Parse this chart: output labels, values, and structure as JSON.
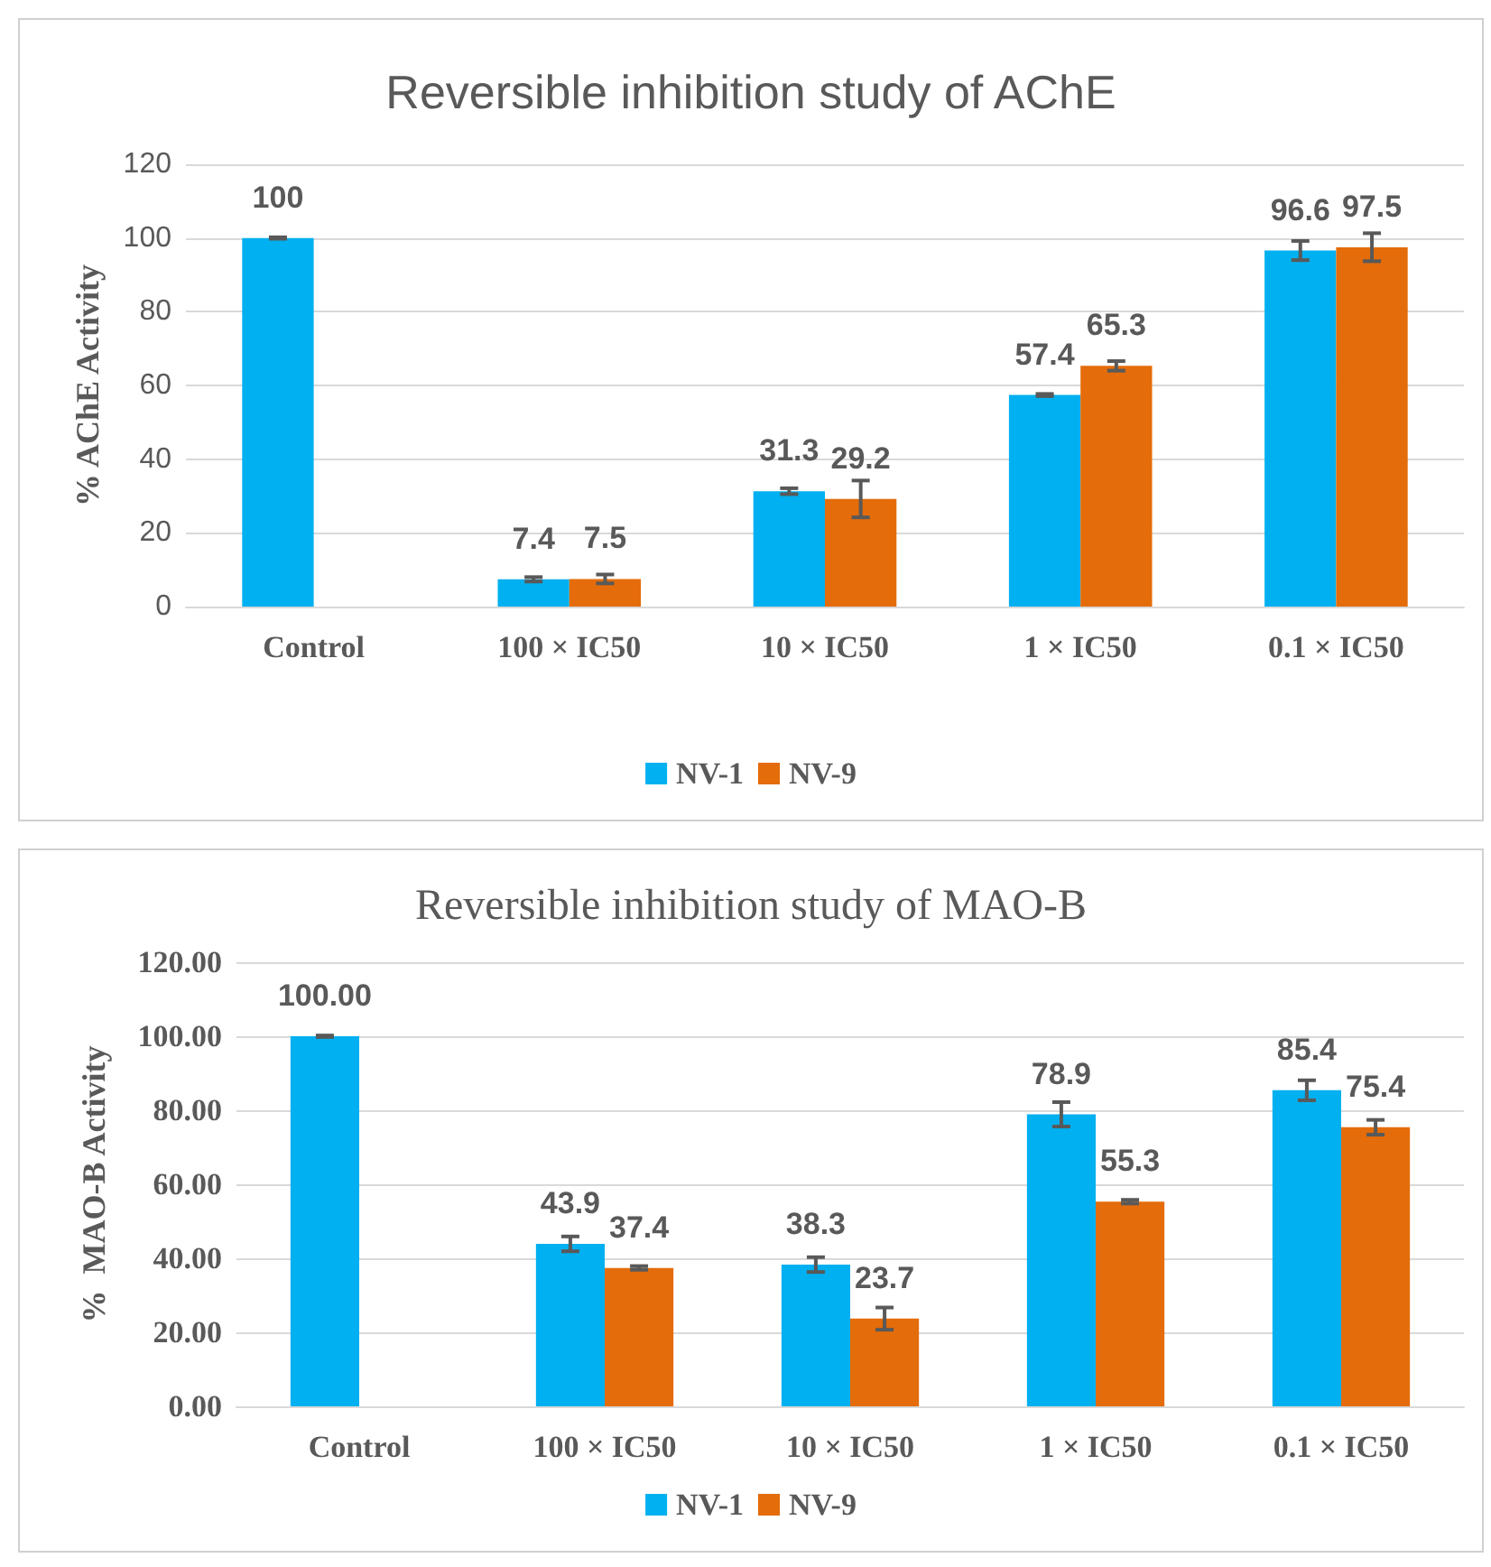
{
  "chart_data": [
    {
      "type": "bar",
      "title": "Reversible inhibition study of AChE",
      "ylabel": "% AChE Activity",
      "categories": [
        "Control",
        "100 × IC50",
        "10 × IC50",
        "1 × IC50",
        "0.1 × IC50"
      ],
      "series": [
        {
          "name": "NV-1",
          "color": "#00b0f0",
          "values": [
            100,
            7.4,
            31.3,
            57.4,
            96.6
          ],
          "errors": [
            0.2,
            0.6,
            0.8,
            0.3,
            2.6
          ],
          "value_labels": [
            "100",
            "7.4",
            "31.3",
            "57.4",
            "96.6"
          ]
        },
        {
          "name": "NV-9",
          "color": "#e46c0a",
          "values": [
            null,
            7.5,
            29.2,
            65.3,
            97.5
          ],
          "errors": [
            null,
            1.2,
            5,
            1.3,
            3.8
          ],
          "value_labels": [
            null,
            "7.5",
            "29.2",
            "65.3",
            "97.5"
          ]
        }
      ],
      "ylim": [
        0,
        120
      ],
      "yticks": [
        0,
        20,
        40,
        60,
        80,
        100,
        120
      ],
      "grid": "y",
      "legend": "bottom"
    },
    {
      "type": "bar",
      "title": "Reversible inhibition study of MAO-B",
      "ylabel": "%  MAO-B Activity",
      "categories": [
        "Control",
        "100 × IC50",
        "10 × IC50",
        "1 × IC50",
        "0.1 × IC50"
      ],
      "series": [
        {
          "name": "NV-1",
          "color": "#00b0f0",
          "values": [
            100,
            43.9,
            38.3,
            78.9,
            85.4
          ],
          "errors": [
            0.2,
            2,
            2,
            3.3,
            2.7
          ],
          "value_labels": [
            "100.00",
            "43.9",
            "38.3",
            "78.9",
            "85.4"
          ]
        },
        {
          "name": "NV-9",
          "color": "#e46c0a",
          "values": [
            null,
            37.4,
            23.7,
            55.3,
            75.4
          ],
          "errors": [
            null,
            0.5,
            3,
            0.5,
            2
          ],
          "value_labels": [
            null,
            "37.4",
            "23.7",
            "55.3",
            "75.4"
          ]
        }
      ],
      "ylim": [
        0,
        120
      ],
      "yticks": [
        {
          "value": 0,
          "label": "0.00"
        },
        {
          "value": 20,
          "label": "20.00"
        },
        {
          "value": 40,
          "label": "40.00"
        },
        {
          "value": 60,
          "label": "60.00"
        },
        {
          "value": 80,
          "label": "80.00"
        },
        {
          "value": 100,
          "label": "100.00"
        },
        {
          "value": 120,
          "label": "120.00"
        }
      ],
      "grid": "y",
      "legend": "bottom"
    }
  ]
}
